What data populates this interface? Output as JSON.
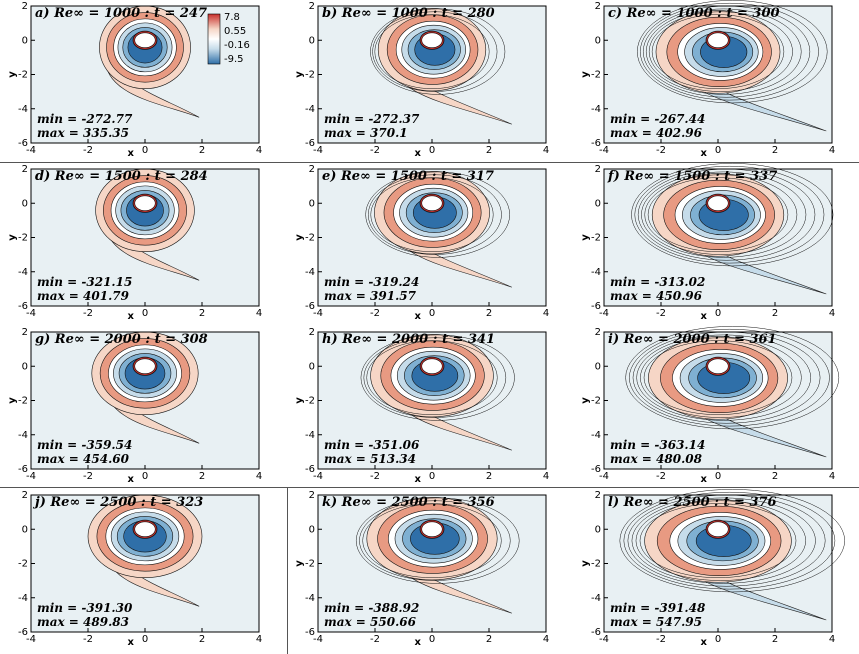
{
  "colors": {
    "background": "#e8f0f3",
    "red_strong": "#c8302c",
    "red_mid": "#e89a82",
    "red_light": "#f6d6c6",
    "white": "#ffffff",
    "blue_light": "#c6dcea",
    "blue_mid": "#7fb0d2",
    "blue_strong": "#2f6fa8"
  },
  "legend": {
    "labels": [
      "7.8",
      "0.55",
      "-0.16",
      "-9.5"
    ]
  },
  "chart_data": [
    {
      "type": "heatmap",
      "id": "a",
      "title": "a) Re∞ = 1000 : t = 247",
      "re": 1000,
      "t": 247,
      "min_label": "min = -272.77",
      "max_label": "max = 335.35",
      "min": -272.77,
      "max": 335.35,
      "xlim": [
        -4,
        4
      ],
      "ylim": [
        -6,
        2
      ],
      "xticks": [
        "-4",
        "-2",
        "0",
        "2",
        "4"
      ],
      "yticks": [
        "2",
        "0",
        "-2",
        "-4",
        "-6"
      ],
      "xlabel": "x",
      "ylabel": "y",
      "stage": 0
    },
    {
      "type": "heatmap",
      "id": "b",
      "title": "b) Re∞ = 1000 : t = 280",
      "re": 1000,
      "t": 280,
      "min_label": "min = -272.37",
      "max_label": "max = 370.1",
      "min": -272.37,
      "max": 370.1,
      "xlim": [
        -4,
        4
      ],
      "ylim": [
        -6,
        2
      ],
      "xticks": [
        "-4",
        "-2",
        "0",
        "2",
        "4"
      ],
      "yticks": [
        "2",
        "0",
        "-2",
        "-4",
        "-6"
      ],
      "xlabel": "x",
      "ylabel": "y",
      "stage": 1
    },
    {
      "type": "heatmap",
      "id": "c",
      "title": "c) Re∞ = 1000 : t = 300",
      "re": 1000,
      "t": 300,
      "min_label": "min = -267.44",
      "max_label": "max = 402.96",
      "min": -267.44,
      "max": 402.96,
      "xlim": [
        -4,
        4
      ],
      "ylim": [
        -6,
        2
      ],
      "xticks": [
        "-4",
        "-2",
        "0",
        "2",
        "4"
      ],
      "yticks": [
        "2",
        "0",
        "-2",
        "-4",
        "-6"
      ],
      "xlabel": "x",
      "ylabel": "y",
      "stage": 2
    },
    {
      "type": "heatmap",
      "id": "d",
      "title": "d) Re∞ = 1500 : t = 284",
      "re": 1500,
      "t": 284,
      "min_label": "min = -321.15",
      "max_label": "max = 401.79",
      "min": -321.15,
      "max": 401.79,
      "xlim": [
        -4,
        4
      ],
      "ylim": [
        -6,
        2
      ],
      "xticks": [
        "-4",
        "-2",
        "0",
        "2",
        "4"
      ],
      "yticks": [
        "2",
        "0",
        "-2",
        "-4",
        "-6"
      ],
      "xlabel": "x",
      "ylabel": "y",
      "stage": 0
    },
    {
      "type": "heatmap",
      "id": "e",
      "title": "e) Re∞ = 1500 : t = 317",
      "re": 1500,
      "t": 317,
      "min_label": "min = -319.24",
      "max_label": "max = 391.57",
      "min": -319.24,
      "max": 391.57,
      "xlim": [
        -4,
        4
      ],
      "ylim": [
        -6,
        2
      ],
      "xticks": [
        "-4",
        "-2",
        "0",
        "2",
        "4"
      ],
      "yticks": [
        "2",
        "0",
        "-2",
        "-4",
        "-6"
      ],
      "xlabel": "x",
      "ylabel": "y",
      "stage": 1
    },
    {
      "type": "heatmap",
      "id": "f",
      "title": "f) Re∞ = 1500 : t = 337",
      "re": 1500,
      "t": 337,
      "min_label": "min = -313.02",
      "max_label": "max = 450.96",
      "min": -313.02,
      "max": 450.96,
      "xlim": [
        -4,
        4
      ],
      "ylim": [
        -6,
        2
      ],
      "xticks": [
        "-4",
        "-2",
        "0",
        "2",
        "4"
      ],
      "yticks": [
        "2",
        "0",
        "-2",
        "-4",
        "-6"
      ],
      "xlabel": "x",
      "ylabel": "y",
      "stage": 2
    },
    {
      "type": "heatmap",
      "id": "g",
      "title": "g) Re∞ = 2000 : t = 308",
      "re": 2000,
      "t": 308,
      "min_label": "min = -359.54",
      "max_label": "max = 454.60",
      "min": -359.54,
      "max": 454.6,
      "xlim": [
        -4,
        4
      ],
      "ylim": [
        -6,
        2
      ],
      "xticks": [
        "-4",
        "-2",
        "0",
        "2",
        "4"
      ],
      "yticks": [
        "2",
        "0",
        "-2",
        "-4",
        "-6"
      ],
      "xlabel": "x",
      "ylabel": "y",
      "stage": 0
    },
    {
      "type": "heatmap",
      "id": "h",
      "title": "h) Re∞ = 2000 : t = 341",
      "re": 2000,
      "t": 341,
      "min_label": "min = -351.06",
      "max_label": "max = 513.34",
      "min": -351.06,
      "max": 513.34,
      "xlim": [
        -4,
        4
      ],
      "ylim": [
        -6,
        2
      ],
      "xticks": [
        "-4",
        "-2",
        "0",
        "2",
        "4"
      ],
      "yticks": [
        "2",
        "0",
        "-2",
        "-4",
        "-6"
      ],
      "xlabel": "x",
      "ylabel": "y",
      "stage": 1
    },
    {
      "type": "heatmap",
      "id": "i",
      "title": "i) Re∞ = 2000 : t = 361",
      "re": 2000,
      "t": 361,
      "min_label": "min = -363.14",
      "max_label": "max = 480.08",
      "min": -363.14,
      "max": 480.08,
      "xlim": [
        -4,
        4
      ],
      "ylim": [
        -6,
        2
      ],
      "xticks": [
        "-4",
        "-2",
        "0",
        "2",
        "4"
      ],
      "yticks": [
        "2",
        "0",
        "-2",
        "-4",
        "-6"
      ],
      "xlabel": "x",
      "ylabel": "y",
      "stage": 2
    },
    {
      "type": "heatmap",
      "id": "j",
      "title": "j) Re∞ = 2500 : t = 323",
      "re": 2500,
      "t": 323,
      "min_label": "min = -391.30",
      "max_label": "max = 489.83",
      "min": -391.3,
      "max": 489.83,
      "xlim": [
        -4,
        4
      ],
      "ylim": [
        -6,
        2
      ],
      "xticks": [
        "-4",
        "-2",
        "0",
        "2",
        "4"
      ],
      "yticks": [
        "2",
        "0",
        "-2",
        "-4",
        "-6"
      ],
      "xlabel": "x",
      "ylabel": "",
      "stage": 0
    },
    {
      "type": "heatmap",
      "id": "k",
      "title": "k) Re∞ = 2500 : t = 356",
      "re": 2500,
      "t": 356,
      "min_label": "min = -388.92",
      "max_label": "max = 550.66",
      "min": -388.92,
      "max": 550.66,
      "xlim": [
        -4,
        4
      ],
      "ylim": [
        -6,
        2
      ],
      "xticks": [
        "-4",
        "-2",
        "0",
        "2",
        "4"
      ],
      "yticks": [
        "2",
        "0",
        "-2",
        "-4",
        "-6"
      ],
      "xlabel": "x",
      "ylabel": "y",
      "stage": 1
    },
    {
      "type": "heatmap",
      "id": "l",
      "title": "l) Re∞ = 2500 : t = 376",
      "re": 2500,
      "t": 376,
      "min_label": "min = -391.48",
      "max_label": "max = 547.95",
      "min": -391.48,
      "max": 547.95,
      "xlim": [
        -4,
        4
      ],
      "ylim": [
        -6,
        2
      ],
      "xticks": [
        "-4",
        "-2",
        "0",
        "2",
        "4"
      ],
      "yticks": [
        "2",
        "0",
        "-2",
        "-4",
        "-6"
      ],
      "xlabel": "x",
      "ylabel": "y",
      "stage": 2
    }
  ]
}
